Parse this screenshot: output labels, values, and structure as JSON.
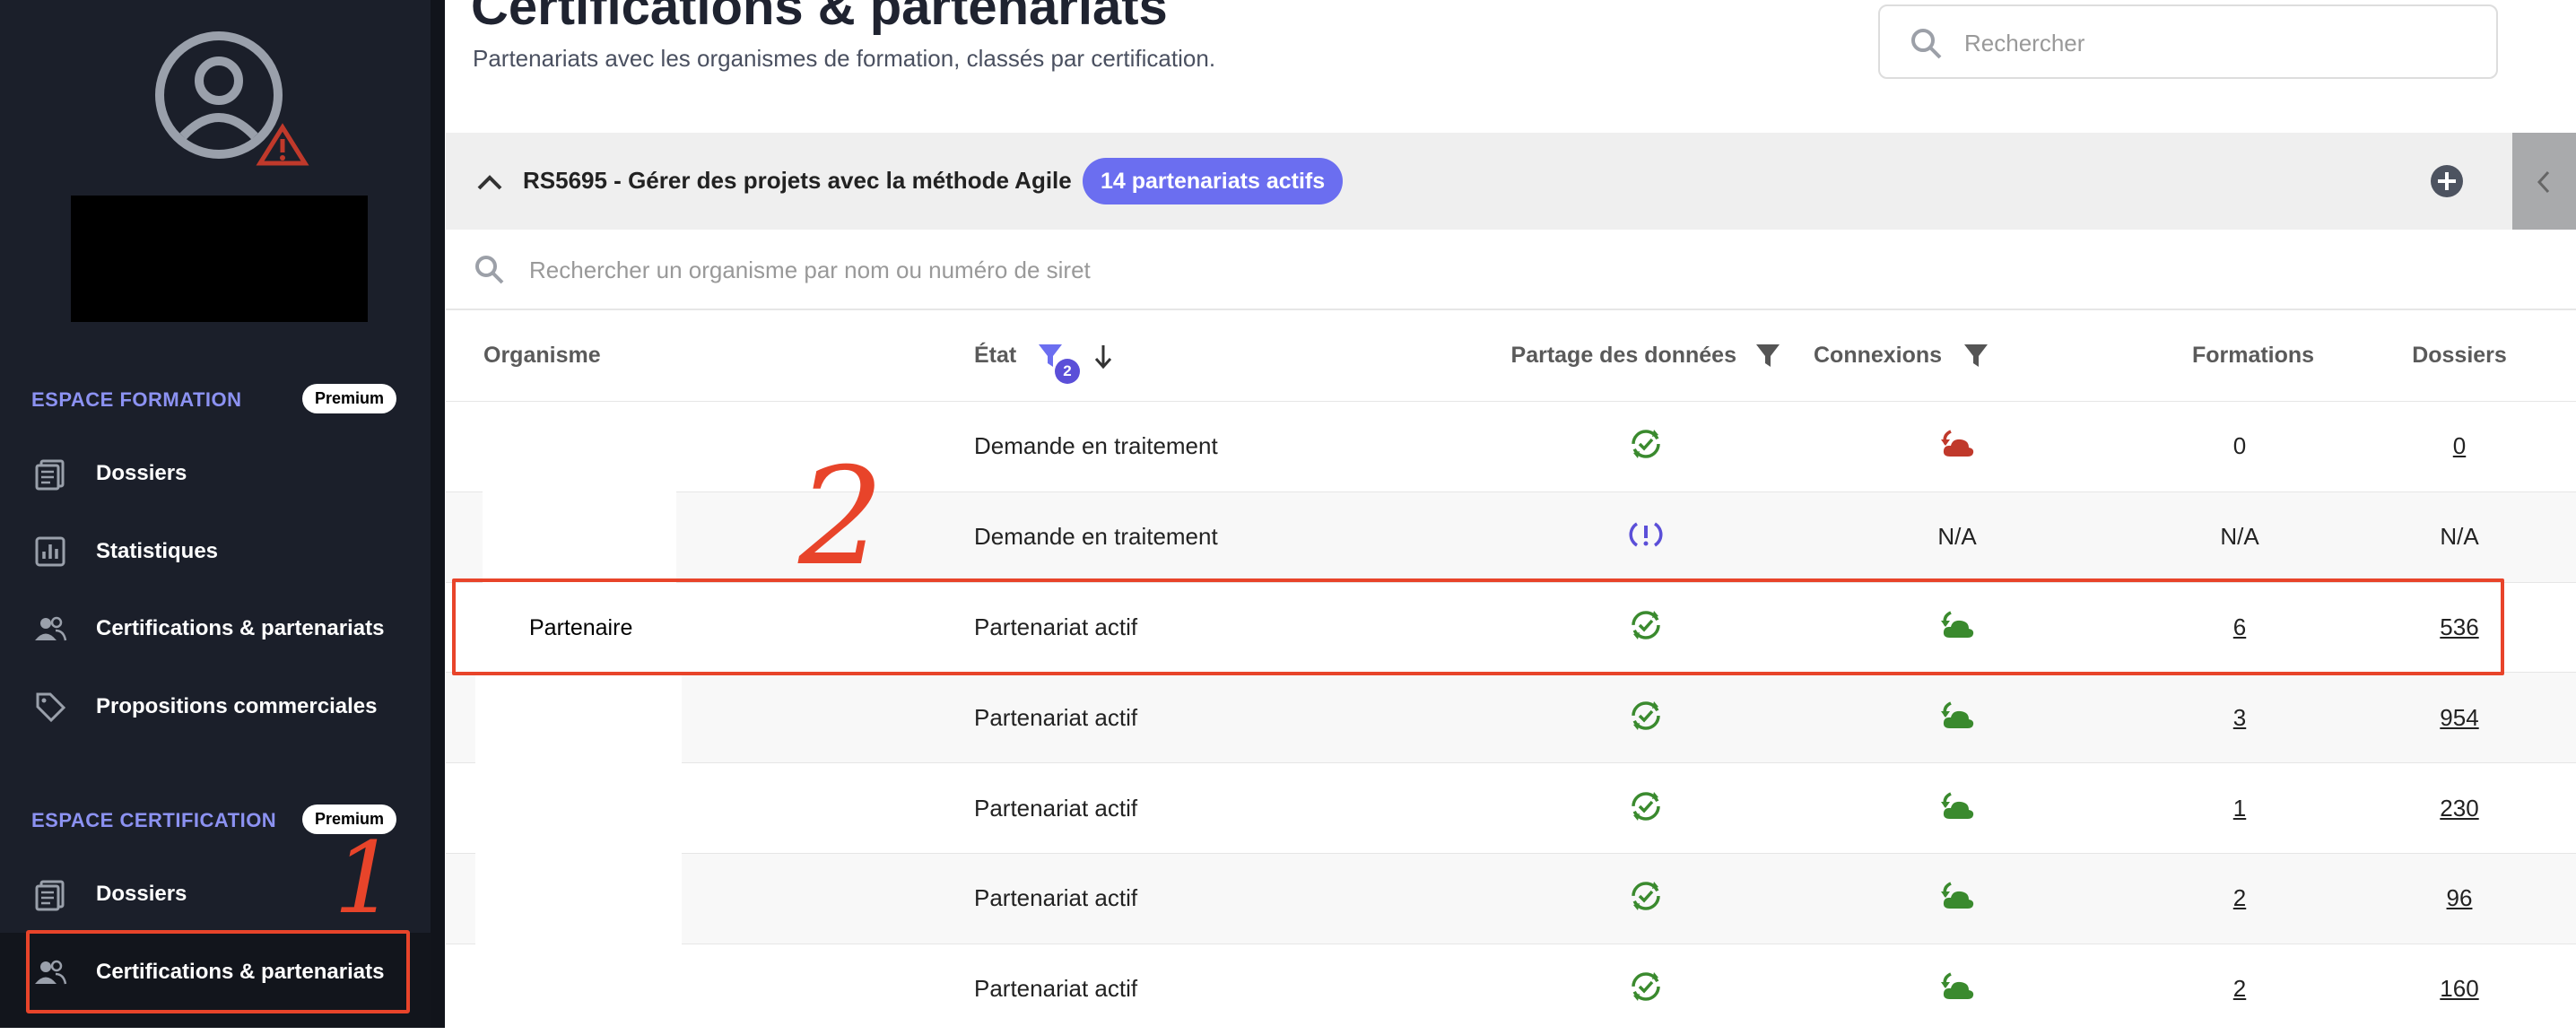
{
  "sidebar": {
    "sections": [
      {
        "title": "ESPACE FORMATION",
        "badge": "Premium",
        "items": [
          "Dossiers",
          "Statistiques",
          "Certifications & partenariats",
          "Propositions commerciales"
        ]
      },
      {
        "title": "ESPACE CERTIFICATION",
        "badge": "Premium",
        "items": [
          "Dossiers",
          "Certifications & partenariats"
        ]
      }
    ]
  },
  "header": {
    "title": "Certifications & partenariats",
    "subtitle": "Partenariats avec les organismes de formation, classés par certification.",
    "search_placeholder": "Rechercher"
  },
  "group": {
    "title": "RS5695 - Gérer des projets avec la méthode Agile",
    "badge": "14 partenariats actifs",
    "search_placeholder": "Rechercher un organisme par nom ou numéro de siret"
  },
  "table": {
    "columns": [
      "Organisme",
      "État",
      "Partage des données",
      "Connexions",
      "Formations",
      "Dossiers"
    ],
    "filter_count": "2",
    "rows": [
      {
        "etat": "Demande en traitement",
        "formations": 0,
        "dossiers": 0
      },
      {
        "etat": "Demande en traitement",
        "connexions": "N/A",
        "formations": "N/A",
        "dossiers": "N/A"
      },
      {
        "organisme": "Partenaire",
        "etat": "Partenariat actif",
        "formations": 6,
        "dossiers": 536
      },
      {
        "etat": "Partenariat actif",
        "formations": 3,
        "dossiers": 954
      },
      {
        "etat": "Partenariat actif",
        "formations": 1,
        "dossiers": 230
      },
      {
        "etat": "Partenariat actif",
        "formations": 2,
        "dossiers": 96
      },
      {
        "etat": "Partenariat actif",
        "formations": 2,
        "dossiers": 160
      }
    ]
  },
  "annotations": [
    "1",
    "2"
  ]
}
